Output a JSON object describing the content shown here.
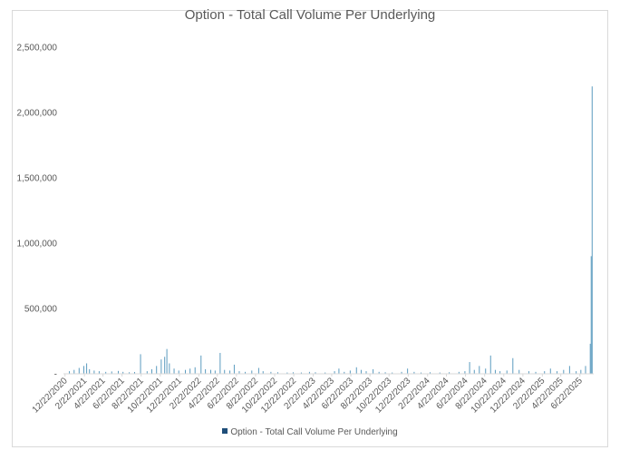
{
  "chart_data": {
    "type": "bar",
    "title": "Option - Total Call Volume Per Underlying",
    "xlabel": "",
    "ylabel": "",
    "ylim": [
      0,
      2500000
    ],
    "y_ticks": [
      "-",
      "500,000",
      "1,000,000",
      "1,500,000",
      "2,000,000",
      "2,500,000"
    ],
    "x_ticks": [
      "12/22/2020",
      "2/22/2021",
      "4/22/2021",
      "6/22/2021",
      "8/22/2021",
      "10/22/2021",
      "12/22/2021",
      "2/22/2022",
      "4/22/2022",
      "6/22/2022",
      "8/22/2022",
      "10/22/2022",
      "12/22/2022",
      "2/22/2023",
      "4/22/2023",
      "6/22/2023",
      "8/22/2023",
      "10/22/2023",
      "12/22/2023",
      "2/22/2024",
      "4/22/2024",
      "6/22/2024",
      "8/22/2024",
      "10/22/2024",
      "12/22/2024",
      "2/22/2025",
      "4/22/2025",
      "6/22/2025"
    ],
    "grid": false,
    "legend_position": "bottom",
    "series": [
      {
        "name": "Option - Total Call Volume Per Underlying",
        "color": "#5b9bbf",
        "points": [
          [
            "2021-01-05",
            20000
          ],
          [
            "2021-01-20",
            30000
          ],
          [
            "2021-02-05",
            45000
          ],
          [
            "2021-02-20",
            60000
          ],
          [
            "2021-03-01",
            80000
          ],
          [
            "2021-03-10",
            35000
          ],
          [
            "2021-03-25",
            25000
          ],
          [
            "2021-04-10",
            20000
          ],
          [
            "2021-05-01",
            15000
          ],
          [
            "2021-05-20",
            18000
          ],
          [
            "2021-06-10",
            22000
          ],
          [
            "2021-06-25",
            15000
          ],
          [
            "2021-07-15",
            12000
          ],
          [
            "2021-08-01",
            14000
          ],
          [
            "2021-08-20",
            150000
          ],
          [
            "2021-09-10",
            20000
          ],
          [
            "2021-09-25",
            35000
          ],
          [
            "2021-10-10",
            60000
          ],
          [
            "2021-10-25",
            110000
          ],
          [
            "2021-11-05",
            130000
          ],
          [
            "2021-11-12",
            190000
          ],
          [
            "2021-11-20",
            80000
          ],
          [
            "2021-12-05",
            40000
          ],
          [
            "2021-12-20",
            25000
          ],
          [
            "2022-01-10",
            30000
          ],
          [
            "2022-01-25",
            40000
          ],
          [
            "2022-02-10",
            50000
          ],
          [
            "2022-03-01",
            140000
          ],
          [
            "2022-03-15",
            35000
          ],
          [
            "2022-04-01",
            30000
          ],
          [
            "2022-04-15",
            25000
          ],
          [
            "2022-05-01",
            160000
          ],
          [
            "2022-05-15",
            30000
          ],
          [
            "2022-06-01",
            25000
          ],
          [
            "2022-06-15",
            70000
          ],
          [
            "2022-07-01",
            20000
          ],
          [
            "2022-07-20",
            15000
          ],
          [
            "2022-08-10",
            25000
          ],
          [
            "2022-09-01",
            45000
          ],
          [
            "2022-09-15",
            20000
          ],
          [
            "2022-10-10",
            15000
          ],
          [
            "2022-11-01",
            12000
          ],
          [
            "2022-12-01",
            10000
          ],
          [
            "2022-12-20",
            12000
          ],
          [
            "2023-01-15",
            10000
          ],
          [
            "2023-02-10",
            15000
          ],
          [
            "2023-03-01",
            12000
          ],
          [
            "2023-04-01",
            10000
          ],
          [
            "2023-05-01",
            20000
          ],
          [
            "2023-05-15",
            40000
          ],
          [
            "2023-06-01",
            15000
          ],
          [
            "2023-06-20",
            25000
          ],
          [
            "2023-07-10",
            50000
          ],
          [
            "2023-07-25",
            30000
          ],
          [
            "2023-08-10",
            20000
          ],
          [
            "2023-09-01",
            35000
          ],
          [
            "2023-09-20",
            15000
          ],
          [
            "2023-10-10",
            12000
          ],
          [
            "2023-11-01",
            10000
          ],
          [
            "2023-12-01",
            15000
          ],
          [
            "2023-12-20",
            40000
          ],
          [
            "2024-01-10",
            15000
          ],
          [
            "2024-02-01",
            10000
          ],
          [
            "2024-03-01",
            12000
          ],
          [
            "2024-04-01",
            10000
          ],
          [
            "2024-05-01",
            12000
          ],
          [
            "2024-06-01",
            15000
          ],
          [
            "2024-06-20",
            20000
          ],
          [
            "2024-07-05",
            90000
          ],
          [
            "2024-07-20",
            30000
          ],
          [
            "2024-08-05",
            60000
          ],
          [
            "2024-08-25",
            40000
          ],
          [
            "2024-09-10",
            140000
          ],
          [
            "2024-09-25",
            30000
          ],
          [
            "2024-10-10",
            20000
          ],
          [
            "2024-11-01",
            25000
          ],
          [
            "2024-11-20",
            120000
          ],
          [
            "2024-12-10",
            30000
          ],
          [
            "2025-01-10",
            20000
          ],
          [
            "2025-02-01",
            15000
          ],
          [
            "2025-03-01",
            20000
          ],
          [
            "2025-03-20",
            40000
          ],
          [
            "2025-04-10",
            20000
          ],
          [
            "2025-05-01",
            30000
          ],
          [
            "2025-05-20",
            60000
          ],
          [
            "2025-06-10",
            20000
          ],
          [
            "2025-06-25",
            30000
          ],
          [
            "2025-07-10",
            60000
          ],
          [
            "2025-07-25",
            230000
          ],
          [
            "2025-07-28",
            900000
          ],
          [
            "2025-07-31",
            2200000
          ]
        ]
      }
    ]
  }
}
